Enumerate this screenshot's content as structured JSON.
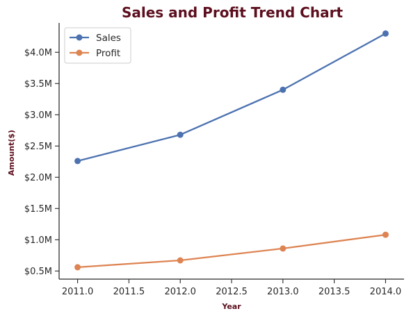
{
  "chart_data": {
    "type": "line",
    "title": "Sales and Profit Trend Chart",
    "xlabel": "Year",
    "ylabel": "Amount($)",
    "x": [
      2011,
      2012,
      2013,
      2014
    ],
    "series": [
      {
        "name": "Sales",
        "values": [
          2.26,
          2.68,
          3.4,
          4.3
        ],
        "color": "#4c72b0"
      },
      {
        "name": "Profit",
        "values": [
          0.56,
          0.67,
          0.86,
          1.08
        ],
        "color": "#dd8452"
      }
    ],
    "units": "$M",
    "xlim": [
      2010.82,
      2014.18
    ],
    "ylim": [
      0.37,
      4.47
    ],
    "x_ticks": [
      {
        "value": 2011.0,
        "label": "2011.0"
      },
      {
        "value": 2011.5,
        "label": "2011.5"
      },
      {
        "value": 2012.0,
        "label": "2012.0"
      },
      {
        "value": 2012.5,
        "label": "2012.5"
      },
      {
        "value": 2013.0,
        "label": "2013.0"
      },
      {
        "value": 2013.5,
        "label": "2013.5"
      },
      {
        "value": 2014.0,
        "label": "2014.0"
      }
    ],
    "y_ticks": [
      {
        "value": 0.5,
        "label": "$0.5M"
      },
      {
        "value": 1.0,
        "label": "$1.0M"
      },
      {
        "value": 1.5,
        "label": "$1.5M"
      },
      {
        "value": 2.0,
        "label": "$2.0M"
      },
      {
        "value": 2.5,
        "label": "$2.5M"
      },
      {
        "value": 3.0,
        "label": "$3.0M"
      },
      {
        "value": 3.5,
        "label": "$3.5M"
      },
      {
        "value": 4.0,
        "label": "$4.0M"
      }
    ],
    "grid": false,
    "legend_position": "top-left",
    "title_color": "#5c0f1e"
  }
}
